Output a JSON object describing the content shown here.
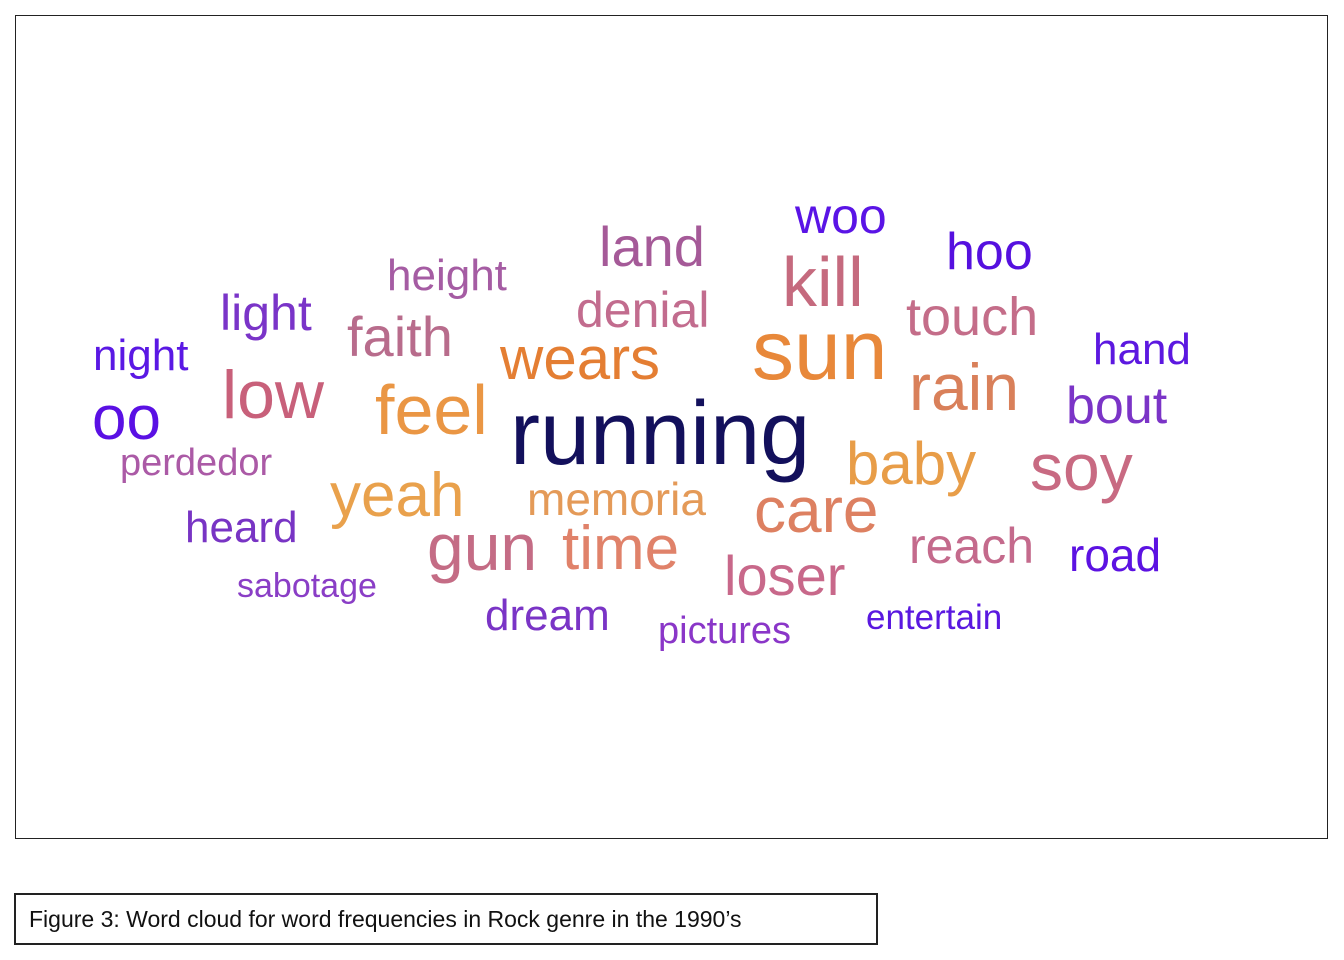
{
  "figure": {
    "caption": "Figure 3: Word cloud for word frequencies in Rock genre in the 1990’s"
  },
  "words": [
    {
      "text": "running",
      "color": "#13105c"
    },
    {
      "text": "sun",
      "color": "#e8883a"
    },
    {
      "text": "kill",
      "color": "#c56a7e"
    },
    {
      "text": "feel",
      "color": "#ea9644"
    },
    {
      "text": "low",
      "color": "#c8607a"
    },
    {
      "text": "wears",
      "color": "#e47e33"
    },
    {
      "text": "rain",
      "color": "#d9805a"
    },
    {
      "text": "soy",
      "color": "#c86a82"
    },
    {
      "text": "baby",
      "color": "#e89d48"
    },
    {
      "text": "care",
      "color": "#dd8061"
    },
    {
      "text": "yeah",
      "color": "#e9a14c"
    },
    {
      "text": "gun",
      "color": "#c46c85"
    },
    {
      "text": "time",
      "color": "#e0826a"
    },
    {
      "text": "loser",
      "color": "#c8688a"
    },
    {
      "text": "faith",
      "color": "#b86c8c"
    },
    {
      "text": "touch",
      "color": "#c46d89"
    },
    {
      "text": "land",
      "color": "#a55a98"
    },
    {
      "text": "oo",
      "color": "#5a10e4"
    },
    {
      "text": "hoo",
      "color": "#5510df"
    },
    {
      "text": "woo",
      "color": "#5a14e6"
    },
    {
      "text": "memoria",
      "color": "#e49a58"
    },
    {
      "text": "denial",
      "color": "#c26c8e"
    },
    {
      "text": "reach",
      "color": "#c46a8c"
    },
    {
      "text": "bout",
      "color": "#7b34c7"
    },
    {
      "text": "light",
      "color": "#7a34c8"
    },
    {
      "text": "height",
      "color": "#a55ca3"
    },
    {
      "text": "night",
      "color": "#5a18e4"
    },
    {
      "text": "hand",
      "color": "#5c18e0"
    },
    {
      "text": "road",
      "color": "#5c12e2"
    },
    {
      "text": "heard",
      "color": "#7834c4"
    },
    {
      "text": "dream",
      "color": "#7a34c6"
    },
    {
      "text": "perdedor",
      "color": "#ab5aa6"
    },
    {
      "text": "sabotage",
      "color": "#8a3ec6"
    },
    {
      "text": "pictures",
      "color": "#8a36c8"
    },
    {
      "text": "entertain",
      "color": "#5a18e0"
    }
  ]
}
